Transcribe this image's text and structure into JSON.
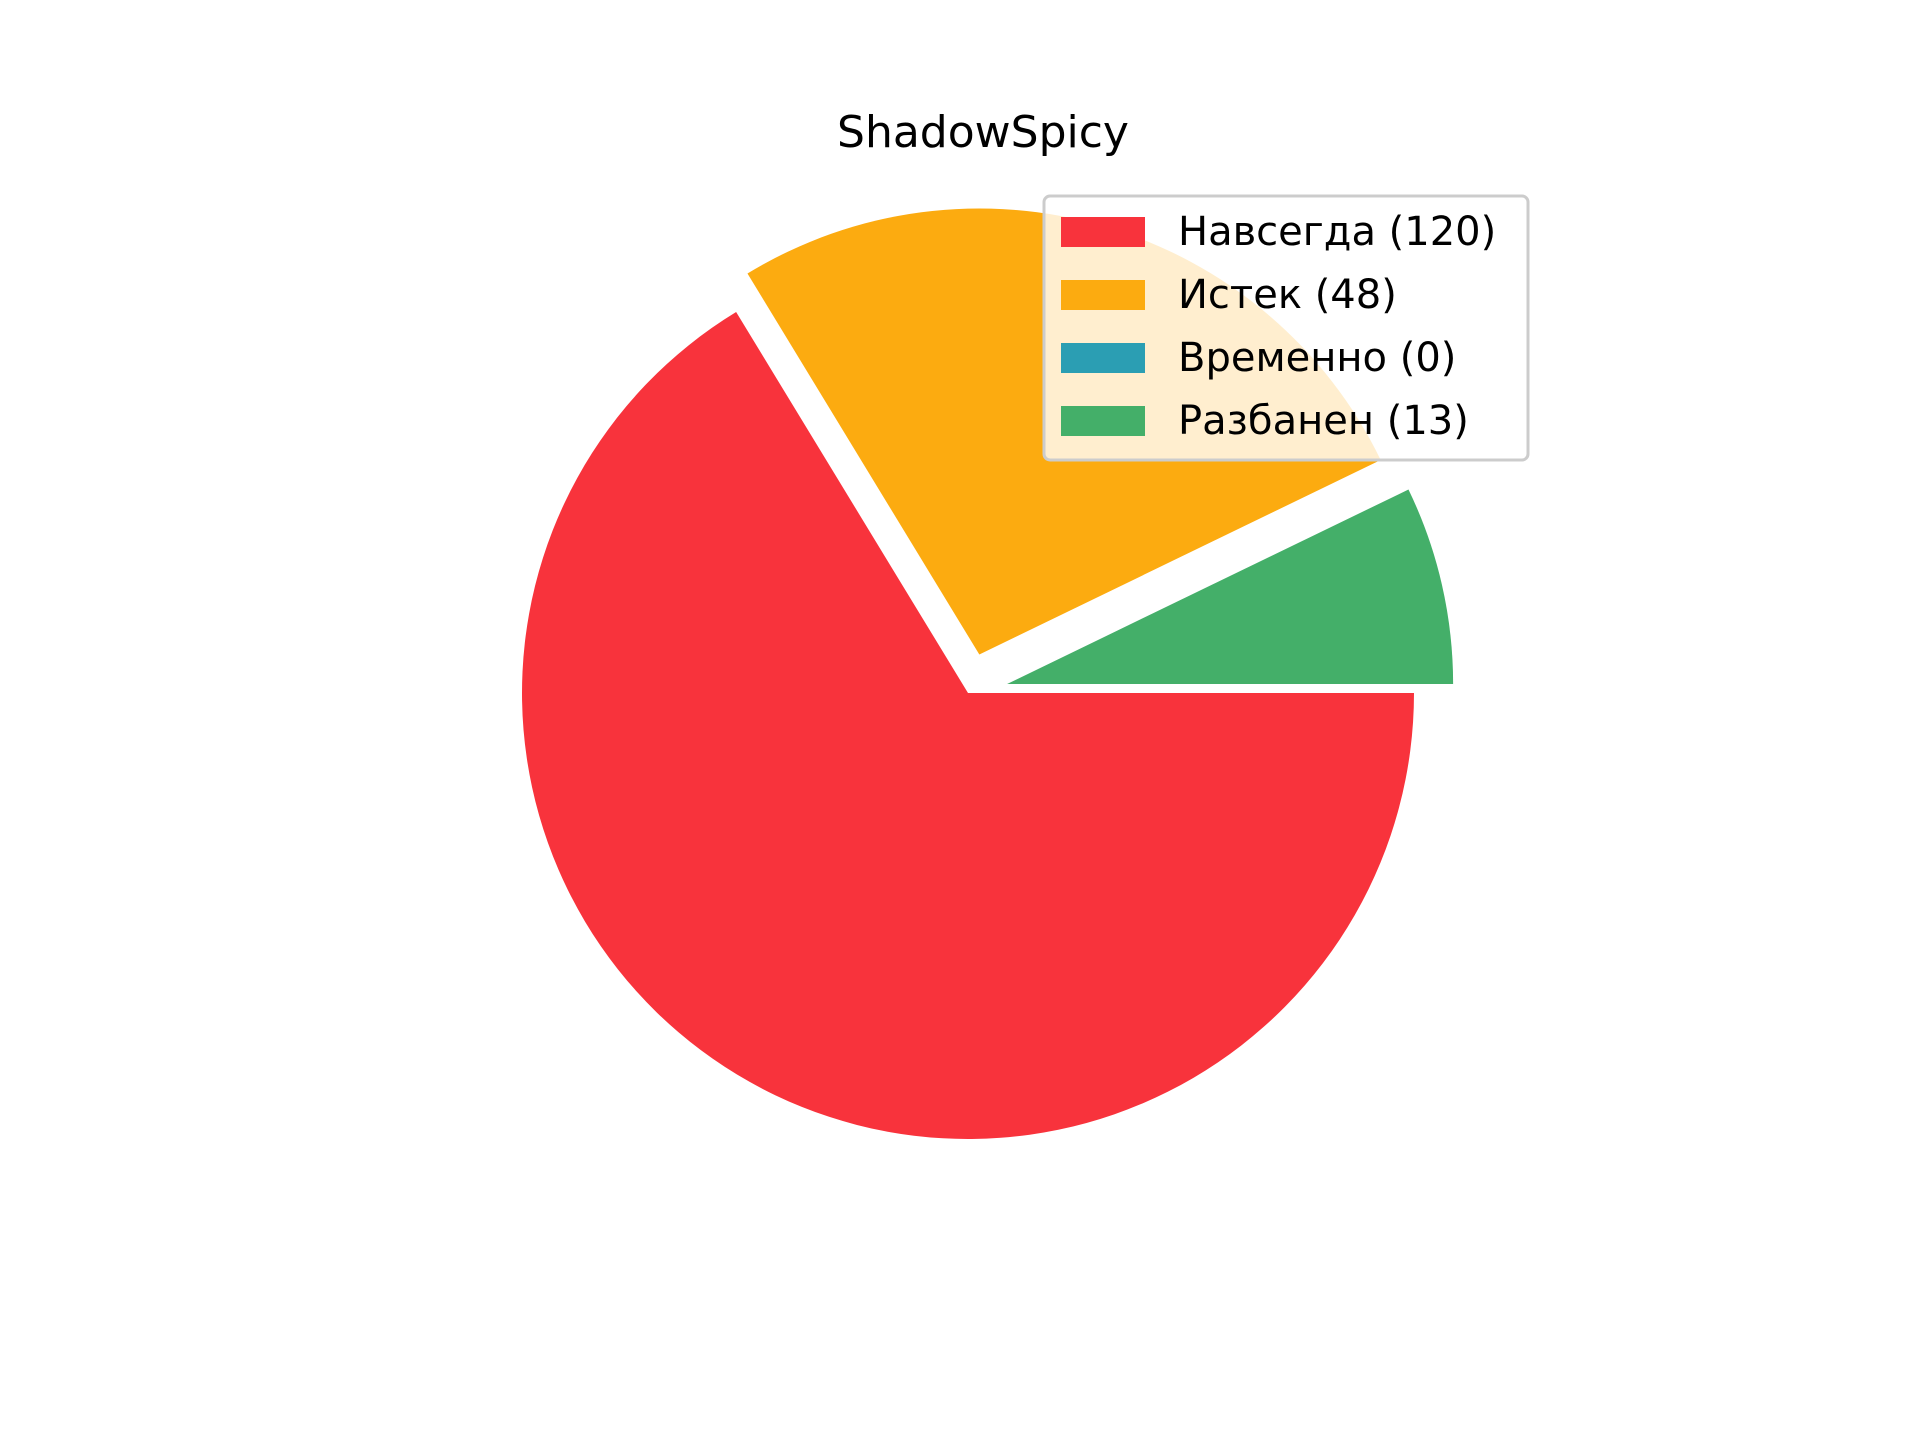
{
  "chart_data": {
    "type": "pie",
    "title": "ShadowSpicy",
    "start_angle_deg": 0,
    "direction": "clockwise",
    "slices": [
      {
        "label": "Навсегда (120)",
        "value": 120,
        "color": "#f8333c",
        "exploded": false
      },
      {
        "label": "Истек (48)",
        "value": 48,
        "color": "#fcab10",
        "exploded": true
      },
      {
        "label": "Временно (0)",
        "value": 0,
        "color": "#2b9eb3",
        "exploded": true
      },
      {
        "label": "Разбанен (13)",
        "value": 13,
        "color": "#44af69",
        "exploded": true
      }
    ],
    "legend_position": "top-right"
  }
}
